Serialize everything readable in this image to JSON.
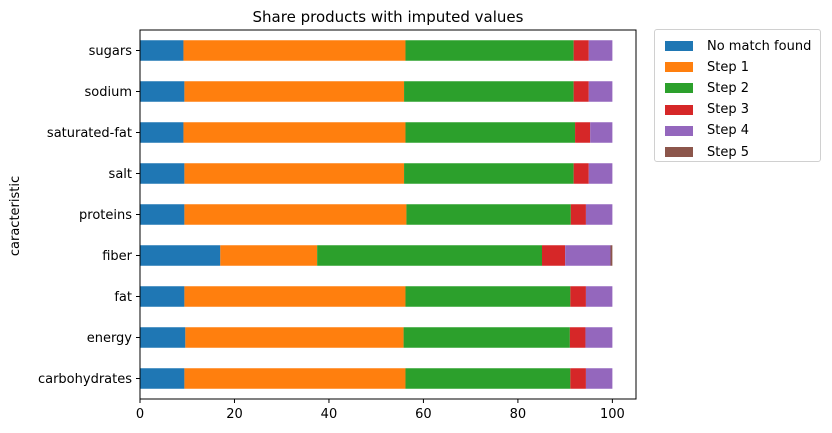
{
  "chart_data": {
    "type": "bar",
    "orientation": "horizontal",
    "stacked": true,
    "title": "Share products with imputed values",
    "xlabel": "",
    "ylabel": "caracteristic",
    "xlim": [
      0,
      105
    ],
    "xticks": [
      0,
      20,
      40,
      60,
      80,
      100
    ],
    "grid": false,
    "legend_position": "outside-top-right",
    "categories": [
      "sugars",
      "sodium",
      "saturated-fat",
      "salt",
      "proteins",
      "fiber",
      "fat",
      "energy",
      "carbohydrates"
    ],
    "series": [
      {
        "name": "No match found",
        "color": "#1f77b4",
        "values": [
          9.2,
          9.4,
          9.2,
          9.4,
          9.4,
          17.0,
          9.4,
          9.6,
          9.4
        ]
      },
      {
        "name": "Step 1",
        "color": "#ff7f0e",
        "values": [
          47.0,
          46.5,
          47.0,
          46.5,
          47.0,
          20.5,
          46.8,
          46.2,
          46.8
        ]
      },
      {
        "name": "Step 2",
        "color": "#2ca02c",
        "values": [
          35.6,
          35.9,
          35.9,
          35.9,
          34.8,
          47.6,
          34.9,
          35.2,
          34.9
        ]
      },
      {
        "name": "Step 3",
        "color": "#d62728",
        "values": [
          3.2,
          3.2,
          3.2,
          3.2,
          3.2,
          4.9,
          3.3,
          3.3,
          3.3
        ]
      },
      {
        "name": "Step 4",
        "color": "#9467bd",
        "values": [
          5.0,
          5.0,
          4.7,
          5.0,
          5.6,
          9.6,
          5.6,
          5.7,
          5.6
        ]
      },
      {
        "name": "Step 5",
        "color": "#8c564b",
        "values": [
          0.0,
          0.0,
          0.0,
          0.0,
          0.0,
          0.4,
          0.0,
          0.0,
          0.0
        ]
      }
    ]
  }
}
